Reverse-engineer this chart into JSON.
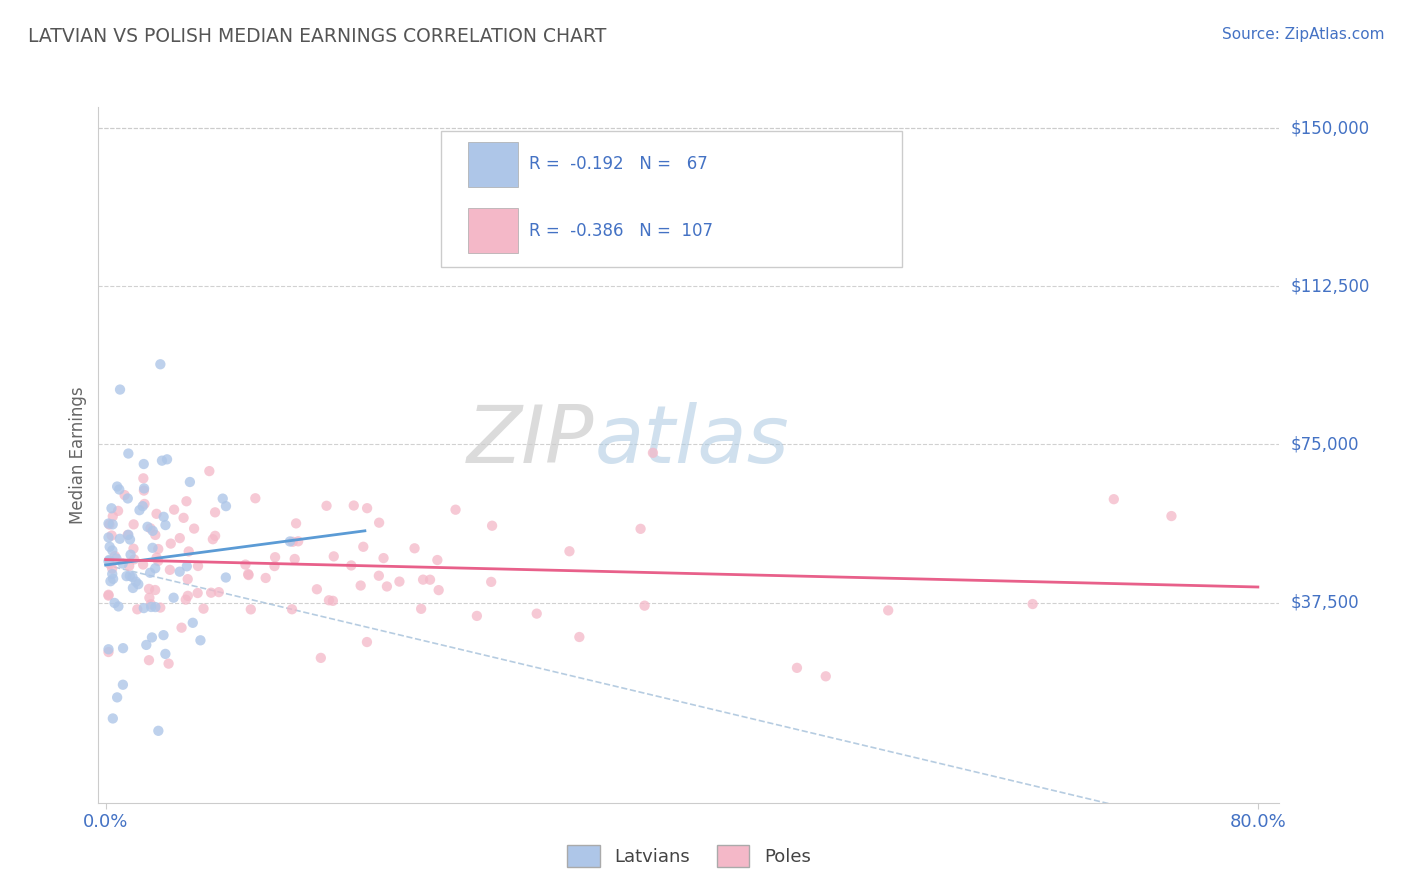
{
  "title": "LATVIAN VS POLISH MEDIAN EARNINGS CORRELATION CHART",
  "source": "Source: ZipAtlas.com",
  "ylabel": "Median Earnings",
  "x_min": 0.0,
  "x_max": 0.8,
  "y_min": 0,
  "y_max": 155000,
  "latvian_color": "#aec6e8",
  "polish_color": "#f4b8c8",
  "line_latvian_color": "#5b9bd5",
  "line_polish_color": "#e8608a",
  "dash_color": "#aac4dc",
  "latvian_R": -0.192,
  "latvian_N": 67,
  "polish_R": -0.386,
  "polish_N": 107,
  "legend_label_latvian": "Latvians",
  "legend_label_polish": "Poles",
  "watermark_zip": "ZIP",
  "watermark_atlas": "atlas",
  "background_color": "#ffffff",
  "grid_color": "#cccccc",
  "title_color": "#555555",
  "axis_label_color": "#4472c4",
  "y_tick_vals": [
    37500,
    75000,
    112500,
    150000
  ],
  "y_tick_labels": [
    "$37,500",
    "$75,000",
    "$112,500",
    "$150,000"
  ]
}
